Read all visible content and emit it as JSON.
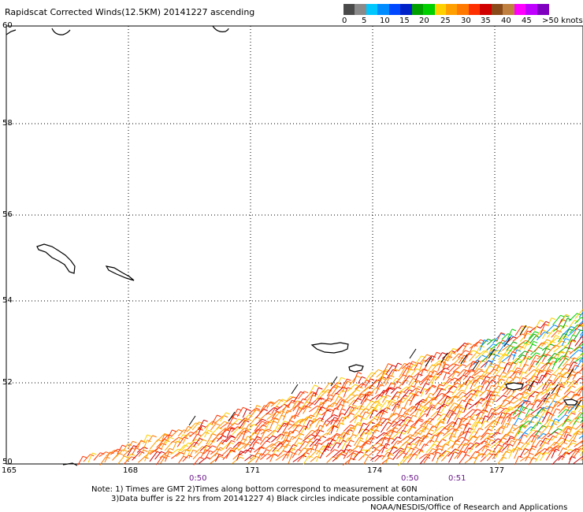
{
  "title": "Rapidscat Corrected Winds(12.5KM) 20141227 ascending",
  "colorbar": {
    "colors": [
      "#4a4a4a",
      "#8a8a8a",
      "#00c8ff",
      "#008cff",
      "#0048ff",
      "#0020c8",
      "#00a000",
      "#00d000",
      "#ffd000",
      "#ffa000",
      "#ff7800",
      "#ff3000",
      "#d00000",
      "#8a4a1a",
      "#c08040",
      "#ff00ff",
      "#c000ff",
      "#8000c0"
    ],
    "labels": [
      "0",
      "5",
      "10",
      "15",
      "20",
      "25",
      "30",
      "35",
      "40",
      "45",
      ">50 knots"
    ]
  },
  "map": {
    "lat_ticks": [
      "60",
      "58",
      "56",
      "54",
      "52",
      "50"
    ],
    "lon_ticks": [
      "165",
      "168",
      "171",
      "174",
      "177"
    ],
    "time_markers": [
      "0:50",
      "0:50",
      "0:51"
    ]
  },
  "notes": {
    "line1": "Note: 1) Times are GMT 2)Times along bottom correspond to measurement at 60N",
    "line2": "3)Data buffer is 22 hrs from 20141227 4) Black circles indicate possible contamination",
    "line3": "NOAA/NESDIS/Office of Research and Applications"
  }
}
